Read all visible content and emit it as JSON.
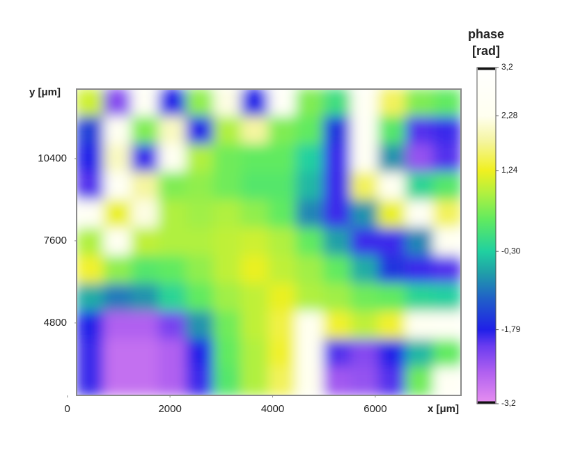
{
  "chart_data": {
    "type": "heatmap",
    "xlabel": "x [μm]",
    "ylabel": "y [μm]",
    "colorbar_title": [
      "phase",
      "[rad]"
    ],
    "xlim": [
      180,
      7670
    ],
    "ylim": [
      2330,
      12770
    ],
    "xticks": [
      0,
      2000,
      4000,
      6000
    ],
    "yticks": [
      4800,
      7600,
      10400
    ],
    "clim": [
      -3.2,
      3.2
    ],
    "cticks": [
      {
        "value": 3.2,
        "label": "3,2"
      },
      {
        "value": 2.28,
        "label": "2,28"
      },
      {
        "value": 1.24,
        "label": "1,24"
      },
      {
        "value": -0.3,
        "label": "-0,30"
      },
      {
        "value": -1.79,
        "label": "-1,79"
      },
      {
        "value": -3.2,
        "label": "-3,2"
      }
    ],
    "colorscale": [
      {
        "value": -3.2,
        "color": "#e890f0"
      },
      {
        "value": -2.6,
        "color": "#b060f0"
      },
      {
        "value": -2.1,
        "color": "#6a3cf0"
      },
      {
        "value": -1.79,
        "color": "#2020e8"
      },
      {
        "value": -1.2,
        "color": "#2060c8"
      },
      {
        "value": -0.7,
        "color": "#20a0a8"
      },
      {
        "value": -0.3,
        "color": "#20d0a0"
      },
      {
        "value": 0.3,
        "color": "#60ea60"
      },
      {
        "value": 0.8,
        "color": "#b0f040"
      },
      {
        "value": 1.24,
        "color": "#f0f020"
      },
      {
        "value": 1.8,
        "color": "#f5f5a0"
      },
      {
        "value": 2.28,
        "color": "#fffff0"
      },
      {
        "value": 3.2,
        "color": "#ffffff"
      }
    ],
    "x": [
      448,
      983,
      1518,
      2053,
      2588,
      3123,
      3658,
      4193,
      4728,
      5263,
      5798,
      6333,
      6868,
      7403
    ],
    "y": [
      12296,
      11347,
      10397,
      9448,
      8499,
      7550,
      6601,
      5652,
      4702,
      3753,
      2804
    ],
    "z": [
      [
        1.0,
        -2.3,
        2.6,
        -1.8,
        0.6,
        2.2,
        -1.8,
        2.7,
        0.5,
        0.0,
        2.5,
        1.5,
        0.5,
        0.3
      ],
      [
        -1.5,
        2.4,
        0.5,
        2.0,
        -1.8,
        0.8,
        1.8,
        0.5,
        0.3,
        -1.6,
        2.6,
        0.2,
        -2.0,
        -1.9
      ],
      [
        -1.8,
        2.0,
        -1.9,
        2.4,
        0.8,
        0.4,
        0.3,
        0.3,
        -0.3,
        -1.9,
        2.5,
        -0.8,
        -2.4,
        -2.0
      ],
      [
        -2.0,
        2.6,
        1.8,
        0.5,
        0.6,
        0.4,
        0.2,
        0.2,
        -0.5,
        -1.9,
        1.5,
        2.3,
        -0.2,
        0.2
      ],
      [
        2.5,
        1.2,
        2.2,
        0.8,
        0.7,
        0.8,
        0.6,
        0.3,
        -0.9,
        -1.9,
        -0.8,
        1.2,
        2.5,
        1.5
      ],
      [
        0.8,
        2.4,
        0.9,
        0.8,
        0.8,
        0.9,
        1.0,
        0.8,
        0.3,
        -0.7,
        -1.9,
        -1.9,
        -0.9,
        2.4
      ],
      [
        1.3,
        0.6,
        0.2,
        0.3,
        0.6,
        0.9,
        1.2,
        0.9,
        0.7,
        0.3,
        -0.6,
        -1.6,
        -1.9,
        -2.0
      ],
      [
        -0.6,
        -1.0,
        -0.8,
        -0.2,
        0.3,
        0.7,
        0.9,
        1.2,
        0.8,
        0.7,
        0.4,
        0.3,
        -0.2,
        -0.3
      ],
      [
        -1.8,
        -2.6,
        -2.6,
        -2.2,
        -0.8,
        0.4,
        0.9,
        1.4,
        2.3,
        1.3,
        0.9,
        1.3,
        2.4,
        2.6
      ],
      [
        -1.9,
        -2.8,
        -2.8,
        -2.6,
        -1.8,
        0.3,
        0.8,
        1.3,
        2.4,
        -2.0,
        -2.3,
        -1.8,
        -0.5,
        0.3
      ],
      [
        -1.9,
        -2.8,
        -2.8,
        -2.6,
        -1.9,
        0.2,
        0.8,
        1.5,
        2.3,
        -2.5,
        -2.4,
        -2.0,
        0.4,
        2.5
      ]
    ]
  }
}
